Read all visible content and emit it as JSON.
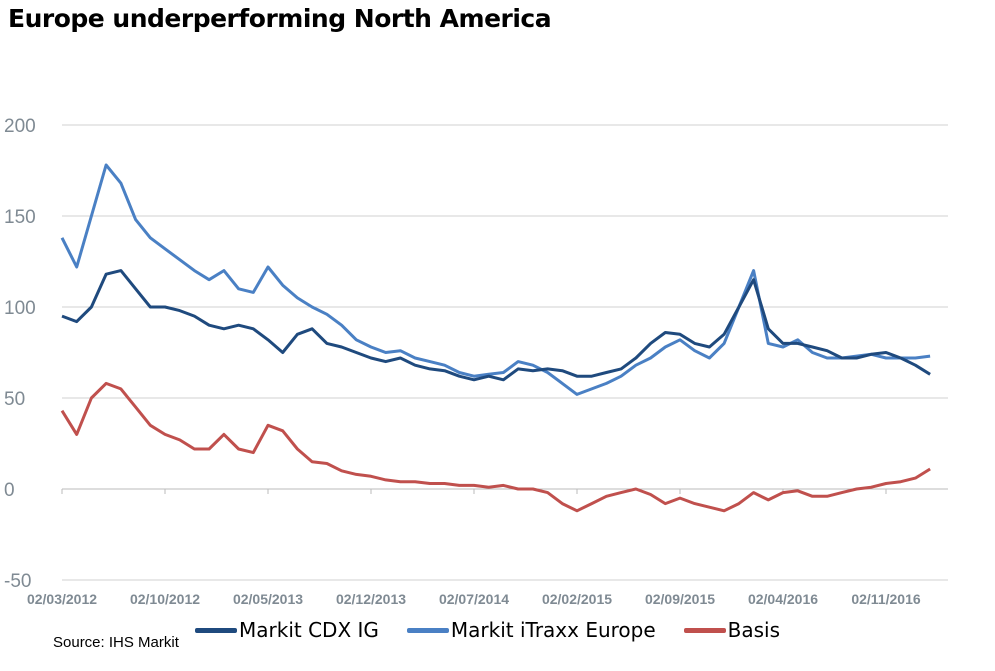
{
  "chart_data": {
    "type": "line",
    "title": "Europe underperforming North America",
    "source": "Source: IHS Markit",
    "ylim": [
      -50,
      200
    ],
    "yticks": [
      200,
      150,
      100,
      50,
      0,
      -50
    ],
    "xtick_labels": [
      "02/03/2012",
      "02/10/2012",
      "02/05/2013",
      "02/12/2013",
      "02/07/2014",
      "02/02/2015",
      "02/09/2015",
      "02/04/2016",
      "02/11/2016"
    ],
    "grid": "horizontal",
    "legend": "bottom",
    "x": [
      "2012-03",
      "2012-04",
      "2012-05",
      "2012-06",
      "2012-07",
      "2012-08",
      "2012-09",
      "2012-10",
      "2012-11",
      "2012-12",
      "2013-01",
      "2013-02",
      "2013-03",
      "2013-04",
      "2013-05",
      "2013-06",
      "2013-07",
      "2013-08",
      "2013-09",
      "2013-10",
      "2013-11",
      "2013-12",
      "2014-01",
      "2014-02",
      "2014-03",
      "2014-04",
      "2014-05",
      "2014-06",
      "2014-07",
      "2014-08",
      "2014-09",
      "2014-10",
      "2014-11",
      "2014-12",
      "2015-01",
      "2015-02",
      "2015-03",
      "2015-04",
      "2015-05",
      "2015-06",
      "2015-07",
      "2015-08",
      "2015-09",
      "2015-10",
      "2015-11",
      "2015-12",
      "2016-01",
      "2016-02",
      "2016-03",
      "2016-04",
      "2016-05",
      "2016-06",
      "2016-07",
      "2016-08",
      "2016-09",
      "2016-10",
      "2016-11",
      "2016-12",
      "2017-01",
      "2017-02"
    ],
    "series": [
      {
        "name": "Markit CDX IG",
        "color": "#1f4a7e",
        "values": [
          95,
          92,
          100,
          118,
          120,
          110,
          100,
          100,
          98,
          95,
          90,
          88,
          90,
          88,
          82,
          75,
          85,
          88,
          80,
          78,
          75,
          72,
          70,
          72,
          68,
          66,
          65,
          62,
          60,
          62,
          60,
          66,
          65,
          66,
          65,
          62,
          62,
          64,
          66,
          72,
          80,
          86,
          85,
          80,
          78,
          85,
          100,
          115,
          88,
          80,
          80,
          78,
          76,
          72,
          72,
          74,
          75,
          72,
          68,
          63
        ]
      },
      {
        "name": "Markit iTraxx Europe",
        "color": "#4a80c4",
        "values": [
          138,
          122,
          150,
          178,
          168,
          148,
          138,
          132,
          126,
          120,
          115,
          120,
          110,
          108,
          122,
          112,
          105,
          100,
          96,
          90,
          82,
          78,
          75,
          76,
          72,
          70,
          68,
          64,
          62,
          63,
          64,
          70,
          68,
          64,
          58,
          52,
          55,
          58,
          62,
          68,
          72,
          78,
          82,
          76,
          72,
          80,
          100,
          120,
          80,
          78,
          82,
          75,
          72,
          72,
          73,
          74,
          72,
          72,
          72,
          73
        ]
      },
      {
        "name": "Basis",
        "color": "#c0504d",
        "values": [
          43,
          30,
          50,
          58,
          55,
          45,
          35,
          30,
          27,
          22,
          22,
          30,
          22,
          20,
          35,
          32,
          22,
          15,
          14,
          10,
          8,
          7,
          5,
          4,
          4,
          3,
          3,
          2,
          2,
          1,
          2,
          0,
          0,
          -2,
          -8,
          -12,
          -8,
          -4,
          -2,
          0,
          -3,
          -8,
          -5,
          -8,
          -10,
          -12,
          -8,
          -2,
          -6,
          -2,
          -1,
          -4,
          -4,
          -2,
          0,
          1,
          3,
          4,
          6,
          11
        ]
      }
    ]
  }
}
